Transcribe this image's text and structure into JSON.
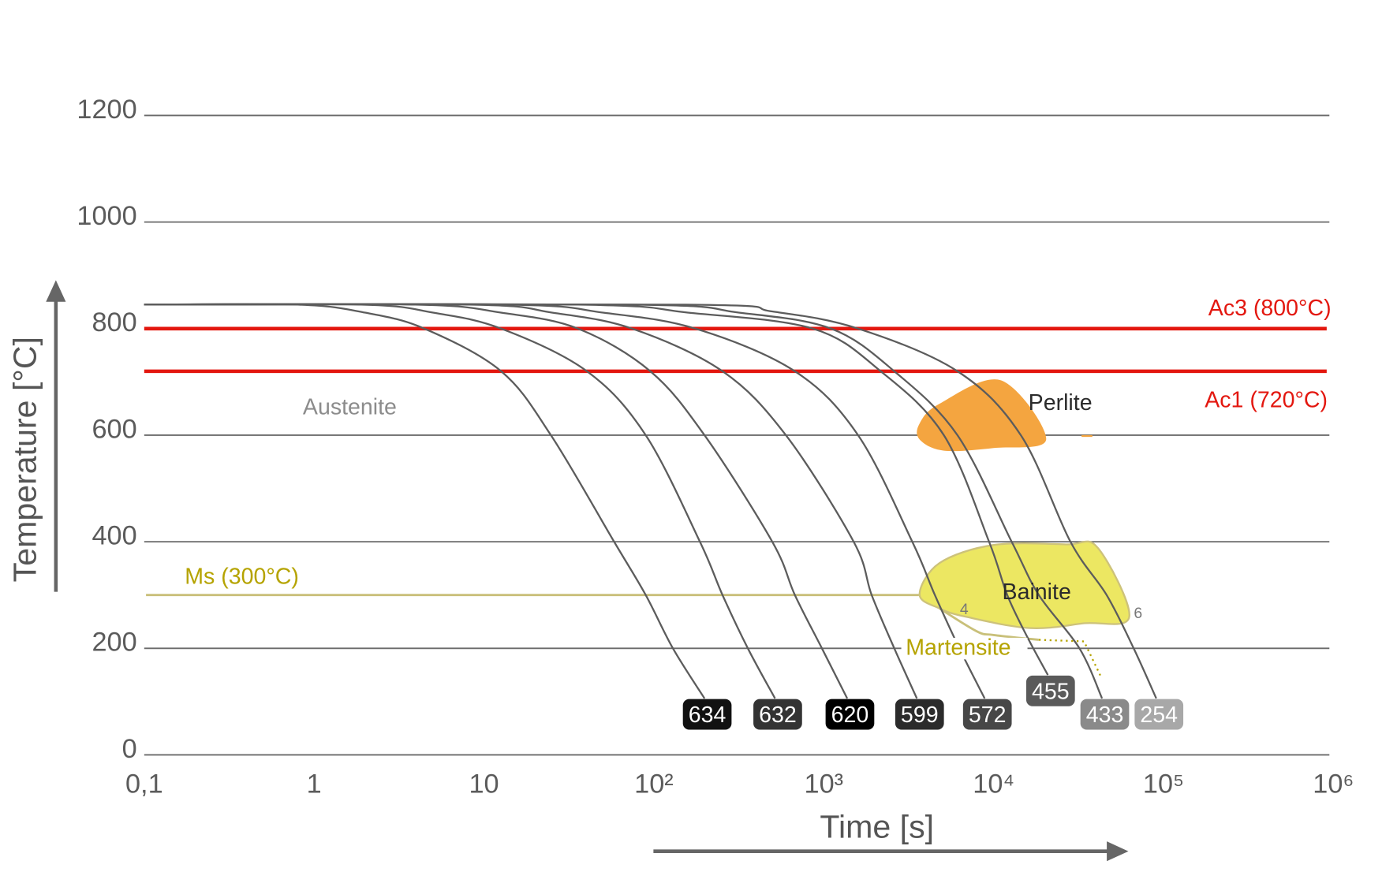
{
  "chart_data": {
    "type": "line",
    "title": "",
    "xlabel": "Time [s]",
    "ylabel": "Temperature [°C]",
    "x_scale": "log",
    "xlim": [
      0.1,
      1000000
    ],
    "ylim": [
      0,
      1200
    ],
    "x_ticks": [
      {
        "value": 0.1,
        "label": "0,1"
      },
      {
        "value": 1,
        "label": "1"
      },
      {
        "value": 10,
        "label": "10"
      },
      {
        "value": 100,
        "label": "10²"
      },
      {
        "value": 1000,
        "label": "10³"
      },
      {
        "value": 10000,
        "label": "10⁴"
      },
      {
        "value": 100000,
        "label": "10⁵"
      },
      {
        "value": 1000000,
        "label": "10⁶"
      }
    ],
    "y_ticks": [
      {
        "value": 0,
        "label": "0"
      },
      {
        "value": 200,
        "label": "200"
      },
      {
        "value": 400,
        "label": "400"
      },
      {
        "value": 600,
        "label": "600"
      },
      {
        "value": 800,
        "label": "800"
      },
      {
        "value": 1000,
        "label": "1000"
      },
      {
        "value": 1200,
        "label": "1200"
      }
    ],
    "grid": true,
    "reference_lines": [
      {
        "name": "Ac3",
        "label": "Ac3 (800°C)",
        "value": 800,
        "color": "#e3170f"
      },
      {
        "name": "Ac1",
        "label": "Ac1 (720°C)",
        "value": 720,
        "color": "#e3170f"
      },
      {
        "name": "Ms",
        "label": "Ms (300°C)",
        "value": 300,
        "color": "#b5a300",
        "end_log10_time": 3.56
      }
    ],
    "phase_labels": {
      "austenite": "Austenite",
      "perlite": "Perlite",
      "bainite": "Bainite",
      "martensite": "Martensite",
      "marker_4": "4",
      "marker_6": "6"
    },
    "regions": {
      "perlite": {
        "color": "#f4a540",
        "points_log10_time_temp": [
          [
            3.564,
            622
          ],
          [
            3.681,
            659
          ],
          [
            4.043,
            703
          ],
          [
            4.309,
            592
          ],
          [
            4.0,
            576
          ],
          [
            3.707,
            571
          ],
          [
            3.564,
            592
          ]
        ]
      },
      "bainite": {
        "color": "#ece762",
        "points_log10_time_temp": [
          [
            3.564,
            301
          ],
          [
            3.681,
            360
          ],
          [
            4.0,
            394
          ],
          [
            4.426,
            395
          ],
          [
            4.612,
            389
          ],
          [
            4.798,
            259
          ],
          [
            4.532,
            247
          ],
          [
            4.213,
            238
          ],
          [
            3.84,
            259
          ],
          [
            3.681,
            275
          ]
        ]
      },
      "martensite_boundary": {
        "color": "#c9c07a",
        "points_log10_time_temp": [
          [
            3.681,
            275
          ],
          [
            3.9,
            232
          ],
          [
            4.0,
            225
          ],
          [
            4.266,
            216
          ]
        ]
      },
      "martensite_dotted": {
        "color": "#b5a300",
        "points_log10_time_temp": [
          [
            4.266,
            216
          ],
          [
            4.532,
            213
          ],
          [
            4.628,
            149
          ]
        ]
      }
    },
    "series": [
      {
        "name": "634",
        "hardness": "634",
        "badge_color": "#111111",
        "points_log10_time_temp": [
          [
            -1,
            845
          ],
          [
            -0.096,
            845
          ],
          [
            0.3,
            830
          ],
          [
            0.649,
            800
          ],
          [
            1.101,
            720
          ],
          [
            1.394,
            600
          ],
          [
            1.766,
            400
          ],
          [
            1.952,
            300
          ],
          [
            2.112,
            200
          ],
          [
            2.298,
            106
          ]
        ]
      },
      {
        "name": "632",
        "hardness": "632",
        "badge_color": "#333333",
        "points_log10_time_temp": [
          [
            -1,
            845
          ],
          [
            0.277,
            845
          ],
          [
            0.7,
            830
          ],
          [
            1.101,
            800
          ],
          [
            1.606,
            720
          ],
          [
            1.952,
            600
          ],
          [
            2.271,
            400
          ],
          [
            2.404,
            300
          ],
          [
            2.553,
            200
          ],
          [
            2.713,
            106
          ]
        ]
      },
      {
        "name": "620",
        "hardness": "620",
        "badge_color": "#000000",
        "points_log10_time_temp": [
          [
            -1,
            845
          ],
          [
            0.596,
            845
          ],
          [
            1.1,
            830
          ],
          [
            1.553,
            800
          ],
          [
            1.979,
            720
          ],
          [
            2.298,
            600
          ],
          [
            2.697,
            400
          ],
          [
            2.83,
            300
          ],
          [
            2.989,
            200
          ],
          [
            3.138,
            106
          ]
        ]
      },
      {
        "name": "599",
        "hardness": "599",
        "badge_color": "#2b2b2b",
        "points_log10_time_temp": [
          [
            -1,
            845
          ],
          [
            0.915,
            845
          ],
          [
            1.4,
            830
          ],
          [
            1.872,
            800
          ],
          [
            2.404,
            720
          ],
          [
            2.777,
            600
          ],
          [
            3.176,
            400
          ],
          [
            3.282,
            300
          ],
          [
            3.415,
            200
          ],
          [
            3.548,
            106
          ]
        ]
      },
      {
        "name": "572",
        "hardness": "572",
        "badge_color": "#474747",
        "points_log10_time_temp": [
          [
            -1,
            845
          ],
          [
            1.128,
            845
          ],
          [
            1.7,
            830
          ],
          [
            2.245,
            800
          ],
          [
            2.83,
            720
          ],
          [
            3.202,
            600
          ],
          [
            3.521,
            400
          ],
          [
            3.654,
            300
          ],
          [
            3.798,
            200
          ],
          [
            3.947,
            106
          ]
        ]
      },
      {
        "name": "455",
        "hardness": "455",
        "badge_color": "#5a5a5a",
        "badge_raised": true,
        "points_log10_time_temp": [
          [
            -1,
            845
          ],
          [
            1.553,
            845
          ],
          [
            2.2,
            830
          ],
          [
            2.936,
            800
          ],
          [
            3.335,
            720
          ],
          [
            3.707,
            600
          ],
          [
            3.973,
            400
          ],
          [
            4.08,
            300
          ],
          [
            4.2,
            220
          ],
          [
            4.319,
            150
          ]
        ]
      },
      {
        "name": "433",
        "hardness": "433",
        "badge_color": "#8a8a8a",
        "points_log10_time_temp": [
          [
            -1,
            845
          ],
          [
            1.872,
            845
          ],
          [
            2.5,
            830
          ],
          [
            3.043,
            800
          ],
          [
            3.415,
            720
          ],
          [
            3.787,
            600
          ],
          [
            4.106,
            400
          ],
          [
            4.266,
            300
          ],
          [
            4.505,
            200
          ],
          [
            4.638,
            106
          ]
        ]
      },
      {
        "name": "254",
        "hardness": "254",
        "badge_color": "#a8a8a8",
        "points_log10_time_temp": [
          [
            -1,
            845
          ],
          [
            2.191,
            845
          ],
          [
            2.7,
            832
          ],
          [
            3.202,
            800
          ],
          [
            3.787,
            720
          ],
          [
            4.16,
            600
          ],
          [
            4.452,
            400
          ],
          [
            4.665,
            300
          ],
          [
            4.824,
            200
          ],
          [
            4.957,
            106
          ]
        ]
      }
    ]
  }
}
